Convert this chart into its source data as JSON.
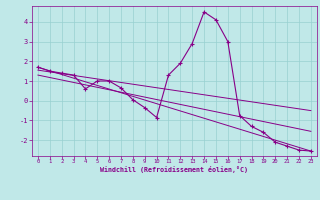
{
  "xlabel": "Windchill (Refroidissement éolien,°C)",
  "xlim": [
    -0.5,
    23.5
  ],
  "ylim": [
    -2.8,
    4.8
  ],
  "xticks": [
    0,
    1,
    2,
    3,
    4,
    5,
    6,
    7,
    8,
    9,
    10,
    11,
    12,
    13,
    14,
    15,
    16,
    17,
    18,
    19,
    20,
    21,
    22,
    23
  ],
  "yticks": [
    -2,
    -1,
    0,
    1,
    2,
    3,
    4
  ],
  "bg_color": "#c0e8e8",
  "line_color": "#880088",
  "grid_color": "#98d0d0",
  "main_line_x": [
    0,
    1,
    2,
    3,
    4,
    5,
    6,
    7,
    8,
    9,
    10,
    11,
    12,
    13,
    14,
    15,
    16,
    17,
    18,
    19,
    20,
    21,
    22,
    23
  ],
  "main_line_y": [
    1.7,
    1.5,
    1.4,
    1.3,
    0.6,
    1.0,
    1.0,
    0.65,
    0.05,
    -0.35,
    -0.85,
    1.3,
    1.9,
    2.9,
    4.5,
    4.1,
    3.0,
    -0.75,
    -1.3,
    -1.6,
    -2.1,
    -2.3,
    -2.5,
    -2.55
  ],
  "trend1_x": [
    0,
    23
  ],
  "trend1_y": [
    1.7,
    -2.55
  ],
  "trend2_x": [
    0,
    23
  ],
  "trend2_y": [
    1.55,
    -0.5
  ],
  "trend3_x": [
    0,
    23
  ],
  "trend3_y": [
    1.3,
    -1.55
  ]
}
